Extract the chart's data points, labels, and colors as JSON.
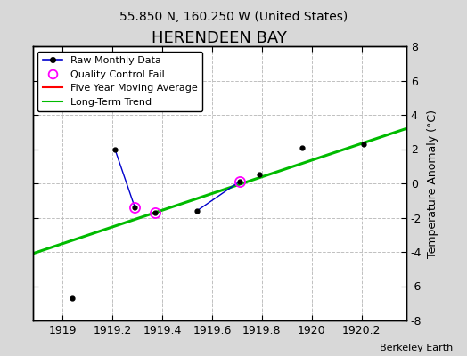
{
  "title": "HERENDEEN BAY",
  "subtitle": "55.850 N, 160.250 W (United States)",
  "ylabel": "Temperature Anomaly (°C)",
  "credit": "Berkeley Earth",
  "background_color": "#d8d8d8",
  "plot_background": "#ffffff",
  "ylim": [
    -8,
    8
  ],
  "xlim": [
    1918.88,
    1920.38
  ],
  "raw_data": {
    "x": [
      1919.04,
      1919.21,
      1919.29,
      1919.37,
      1919.54,
      1919.71,
      1919.79,
      1919.96,
      1920.21
    ],
    "y": [
      -6.7,
      2.0,
      -1.4,
      -1.7,
      -1.6,
      0.1,
      0.5,
      2.1,
      2.3
    ],
    "qc_fail": [
      false,
      false,
      true,
      true,
      false,
      true,
      false,
      false,
      false
    ]
  },
  "connected_segments": [
    {
      "x": [
        1919.21,
        1919.29
      ],
      "y": [
        2.0,
        -1.4
      ]
    },
    {
      "x": [
        1919.54,
        1919.71
      ],
      "y": [
        -1.6,
        0.1
      ]
    }
  ],
  "long_term_trend": {
    "x": [
      1918.88,
      1920.38
    ],
    "y": [
      -4.1,
      3.2
    ]
  },
  "colors": {
    "raw_line": "#0000cc",
    "raw_marker": "#000000",
    "qc_fail": "#ff00ff",
    "five_year": "#ff0000",
    "long_term": "#00bb00",
    "grid": "#c0c0c0"
  },
  "xticks": [
    1919,
    1919.2,
    1919.4,
    1919.6,
    1919.8,
    1920,
    1920.2
  ],
  "yticks": [
    -8,
    -6,
    -4,
    -2,
    0,
    2,
    4,
    6,
    8
  ],
  "title_fontsize": 13,
  "subtitle_fontsize": 10,
  "tick_fontsize": 9,
  "ylabel_fontsize": 9,
  "legend_fontsize": 8,
  "credit_fontsize": 8
}
